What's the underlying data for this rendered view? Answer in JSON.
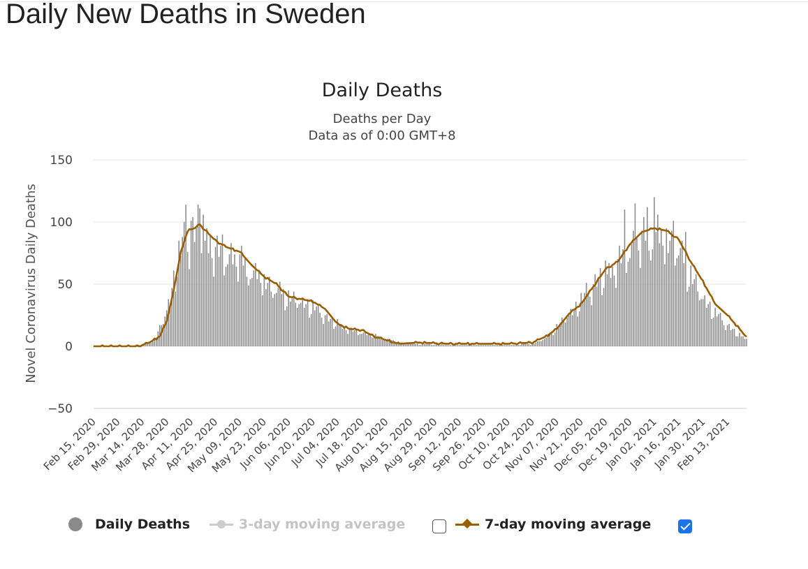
{
  "page": {
    "title": "Daily New Deaths in Sweden"
  },
  "chart_data": {
    "type": "bar",
    "title": "Daily Deaths",
    "subtitle_lines": [
      "Deaths per Day",
      "Data as of 0:00 GMT+8"
    ],
    "xlabel": "",
    "ylabel": "Novel Coronavirus Daily Deaths",
    "ylim": [
      -50,
      150
    ],
    "yticks": [
      150,
      100,
      50,
      0,
      -50
    ],
    "grid": true,
    "legend_position": "bottom",
    "x_start": "Feb 15, 2020",
    "x_end": "Feb 24, 2021",
    "xtick_labels": [
      "Feb 15, 2020",
      "Feb 29, 2020",
      "Mar 14, 2020",
      "Mar 28, 2020",
      "Apr 11, 2020",
      "Apr 25, 2020",
      "May 09, 2020",
      "May 23, 2020",
      "Jun 06, 2020",
      "Jun 20, 2020",
      "Jul 04, 2020",
      "Jul 18, 2020",
      "Aug 01, 2020",
      "Aug 15, 2020",
      "Aug 29, 2020",
      "Sep 12, 2020",
      "Sep 26, 2020",
      "Oct 10, 2020",
      "Oct 24, 2020",
      "Nov 07, 2020",
      "Nov 21, 2020",
      "Dec 05, 2020",
      "Dec 19, 2020",
      "Jan 02, 2021",
      "Jan 16, 2021",
      "Jan 30, 2021",
      "Feb 13, 2021"
    ],
    "series": [
      {
        "name": "Daily Deaths",
        "color": "#8a8a8a",
        "anchors": [
          [
            "Feb 15, 2020",
            0
          ],
          [
            "Mar 10, 2020",
            0
          ],
          [
            "Mar 14, 2020",
            1
          ],
          [
            "Mar 18, 2020",
            3
          ],
          [
            "Mar 22, 2020",
            8
          ],
          [
            "Mar 26, 2020",
            22
          ],
          [
            "Mar 30, 2020",
            40
          ],
          [
            "Apr 03, 2020",
            72
          ],
          [
            "Apr 06, 2020",
            85
          ],
          [
            "Apr 09, 2020",
            92
          ],
          [
            "Apr 13, 2020",
            96
          ],
          [
            "Apr 17, 2020",
            93
          ],
          [
            "Apr 21, 2020",
            88
          ],
          [
            "Apr 25, 2020",
            80
          ],
          [
            "May 01, 2020",
            78
          ],
          [
            "May 09, 2020",
            72
          ],
          [
            "May 16, 2020",
            62
          ],
          [
            "May 23, 2020",
            55
          ],
          [
            "Jun 01, 2020",
            45
          ],
          [
            "Jun 10, 2020",
            39
          ],
          [
            "Jun 20, 2020",
            33
          ],
          [
            "Jun 30, 2020",
            22
          ],
          [
            "Jul 10, 2020",
            14
          ],
          [
            "Jul 20, 2020",
            11
          ],
          [
            "Aug 01, 2020",
            6
          ],
          [
            "Aug 10, 2020",
            3
          ],
          [
            "Aug 20, 2020",
            2
          ],
          [
            "Sep 10, 2020",
            1
          ],
          [
            "Oct 10, 2020",
            1
          ],
          [
            "Oct 24, 2020",
            2
          ],
          [
            "Nov 01, 2020",
            7
          ],
          [
            "Nov 08, 2020",
            18
          ],
          [
            "Nov 15, 2020",
            28
          ],
          [
            "Nov 21, 2020",
            38
          ],
          [
            "Nov 28, 2020",
            52
          ],
          [
            "Dec 05, 2020",
            60
          ],
          [
            "Dec 12, 2020",
            70
          ],
          [
            "Dec 19, 2020",
            84
          ],
          [
            "Dec 26, 2020",
            90
          ],
          [
            "Jan 02, 2021",
            92
          ],
          [
            "Jan 09, 2021",
            90
          ],
          [
            "Jan 16, 2021",
            80
          ],
          [
            "Jan 23, 2021",
            60
          ],
          [
            "Jan 30, 2021",
            40
          ],
          [
            "Feb 06, 2021",
            28
          ],
          [
            "Feb 13, 2021",
            18
          ],
          [
            "Feb 19, 2021",
            10
          ],
          [
            "Feb 24, 2021",
            6
          ]
        ],
        "spikes": [
          [
            "Apr 08, 2020",
            114
          ],
          [
            "Apr 15, 2020",
            114
          ],
          [
            "Apr 11, 2020",
            101
          ],
          [
            "Apr 16, 2020",
            111
          ],
          [
            "Apr 22, 2020",
            90
          ],
          [
            "Dec 22, 2020",
            115
          ],
          [
            "Dec 29, 2020",
            112
          ],
          [
            "Jan 02, 2021",
            120
          ],
          [
            "Jan 04, 2021",
            106
          ],
          [
            "Dec 16, 2020",
            110
          ],
          [
            "Jan 13, 2021",
            101
          ],
          [
            "Jan 20, 2021",
            92
          ]
        ]
      },
      {
        "name": "3-day moving average",
        "color": "#cccccc",
        "visible": false
      },
      {
        "name": "7-day moving average",
        "color": "#9a5e00",
        "visible": true,
        "anchors": [
          [
            "Feb 15, 2020",
            0
          ],
          [
            "Mar 12, 2020",
            0
          ],
          [
            "Mar 14, 2020",
            1
          ],
          [
            "Mar 18, 2020",
            3
          ],
          [
            "Mar 24, 2020",
            8
          ],
          [
            "Mar 28, 2020",
            20
          ],
          [
            "Apr 01, 2020",
            45
          ],
          [
            "Apr 05, 2020",
            75
          ],
          [
            "Apr 09, 2020",
            93
          ],
          [
            "Apr 13, 2020",
            95
          ],
          [
            "Apr 16, 2020",
            98
          ],
          [
            "Apr 20, 2020",
            92
          ],
          [
            "Apr 25, 2020",
            85
          ],
          [
            "May 01, 2020",
            80
          ],
          [
            "May 09, 2020",
            76
          ],
          [
            "May 16, 2020",
            65
          ],
          [
            "May 23, 2020",
            56
          ],
          [
            "May 30, 2020",
            50
          ],
          [
            "Jun 06, 2020",
            40
          ],
          [
            "Jun 13, 2020",
            38
          ],
          [
            "Jun 20, 2020",
            36
          ],
          [
            "Jun 27, 2020",
            30
          ],
          [
            "Jul 04, 2020",
            18
          ],
          [
            "Jul 11, 2020",
            14
          ],
          [
            "Jul 18, 2020",
            13
          ],
          [
            "Jul 25, 2020",
            8
          ],
          [
            "Aug 01, 2020",
            5
          ],
          [
            "Aug 08, 2020",
            2
          ],
          [
            "Aug 20, 2020",
            3
          ],
          [
            "Sep 05, 2020",
            2
          ],
          [
            "Sep 26, 2020",
            2
          ],
          [
            "Oct 10, 2020",
            2
          ],
          [
            "Oct 24, 2020",
            3
          ],
          [
            "Nov 01, 2020",
            8
          ],
          [
            "Nov 07, 2020",
            14
          ],
          [
            "Nov 14, 2020",
            26
          ],
          [
            "Nov 21, 2020",
            34
          ],
          [
            "Nov 28, 2020",
            48
          ],
          [
            "Dec 05, 2020",
            62
          ],
          [
            "Dec 12, 2020",
            68
          ],
          [
            "Dec 19, 2020",
            82
          ],
          [
            "Dec 26, 2020",
            92
          ],
          [
            "Jan 02, 2021",
            95
          ],
          [
            "Jan 09, 2021",
            93
          ],
          [
            "Jan 16, 2021",
            86
          ],
          [
            "Jan 23, 2021",
            68
          ],
          [
            "Jan 30, 2021",
            52
          ],
          [
            "Feb 06, 2021",
            34
          ],
          [
            "Feb 13, 2021",
            25
          ],
          [
            "Feb 20, 2021",
            14
          ],
          [
            "Feb 24, 2021",
            7
          ]
        ]
      }
    ]
  },
  "legend": {
    "items": [
      {
        "label": "Daily Deaths",
        "color": "#8a8a8a",
        "icon": "filled-circle-icon"
      },
      {
        "label": "3-day moving average",
        "color": "#cccccc",
        "icon": "line-dot-icon",
        "checkbox_checked": false
      },
      {
        "label": "7-day moving average",
        "color": "#9a5e00",
        "icon": "line-diamond-icon",
        "checkbox_checked": true
      }
    ]
  }
}
